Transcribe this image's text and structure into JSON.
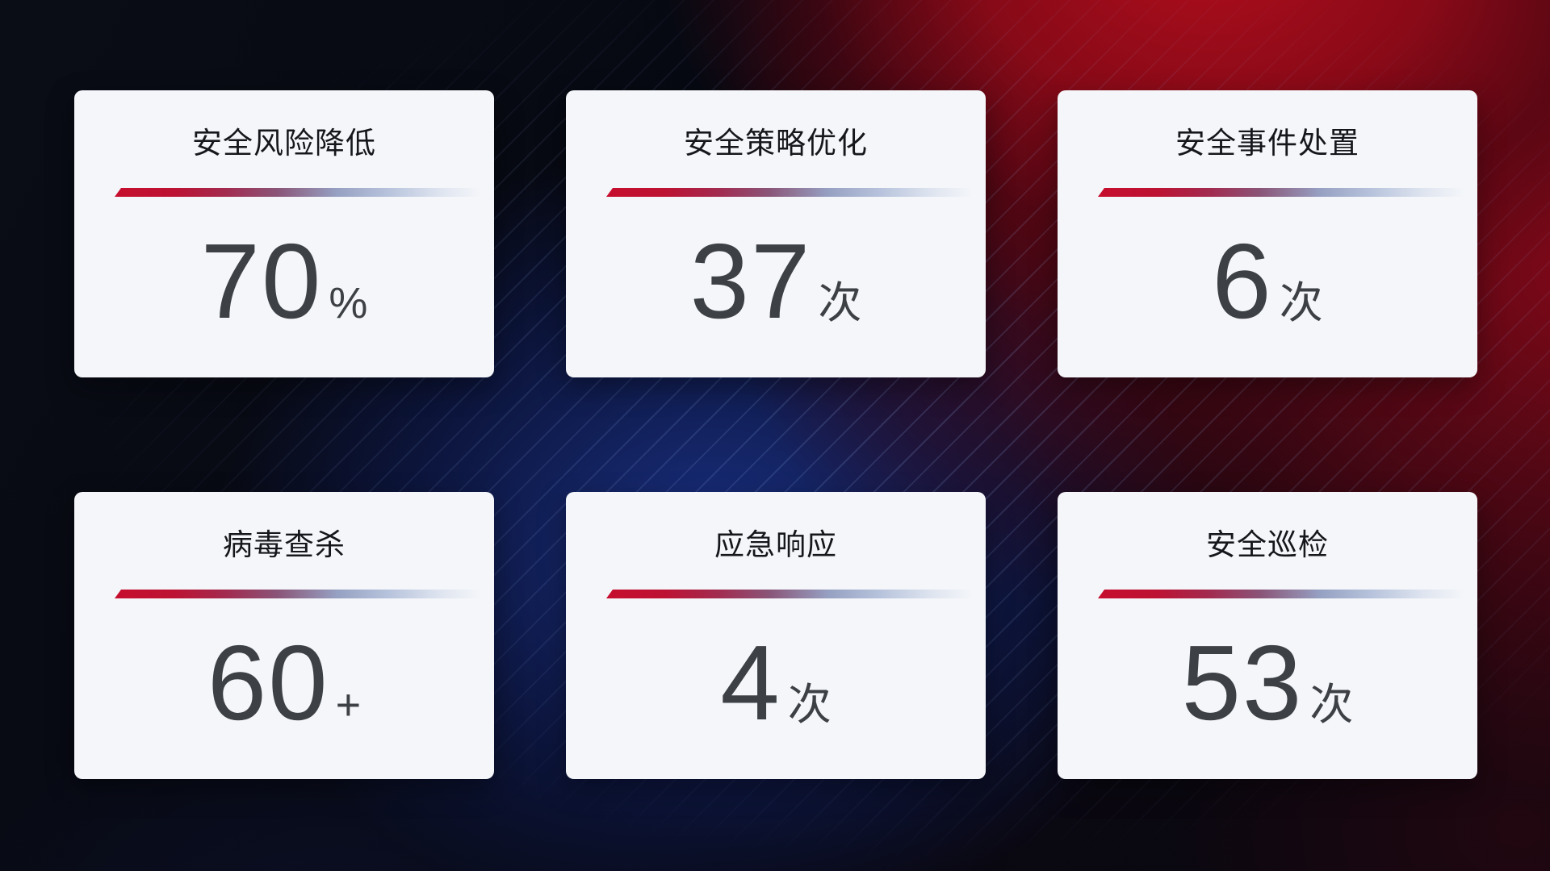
{
  "theme": {
    "card_bg": "#f4f6f9",
    "title_color": "#15171c",
    "value_color": "#3d4045",
    "line_red": "#c60e2e",
    "line_purple": "#8a5578",
    "line_blue": "#b7c3dc",
    "bg_red": "#b00d1c",
    "bg_navy": "#1a3084",
    "bg_dark": "#07080f"
  },
  "cards": [
    {
      "title": "安全风险降低",
      "value": "70",
      "unit": "%"
    },
    {
      "title": "安全策略优化",
      "value": "37",
      "unit": "次"
    },
    {
      "title": "安全事件处置",
      "value": "6",
      "unit": "次"
    },
    {
      "title": "病毒查杀",
      "value": "60",
      "unit": "+"
    },
    {
      "title": "应急响应",
      "value": "4",
      "unit": "次"
    },
    {
      "title": "安全巡检",
      "value": "53",
      "unit": "次"
    }
  ]
}
